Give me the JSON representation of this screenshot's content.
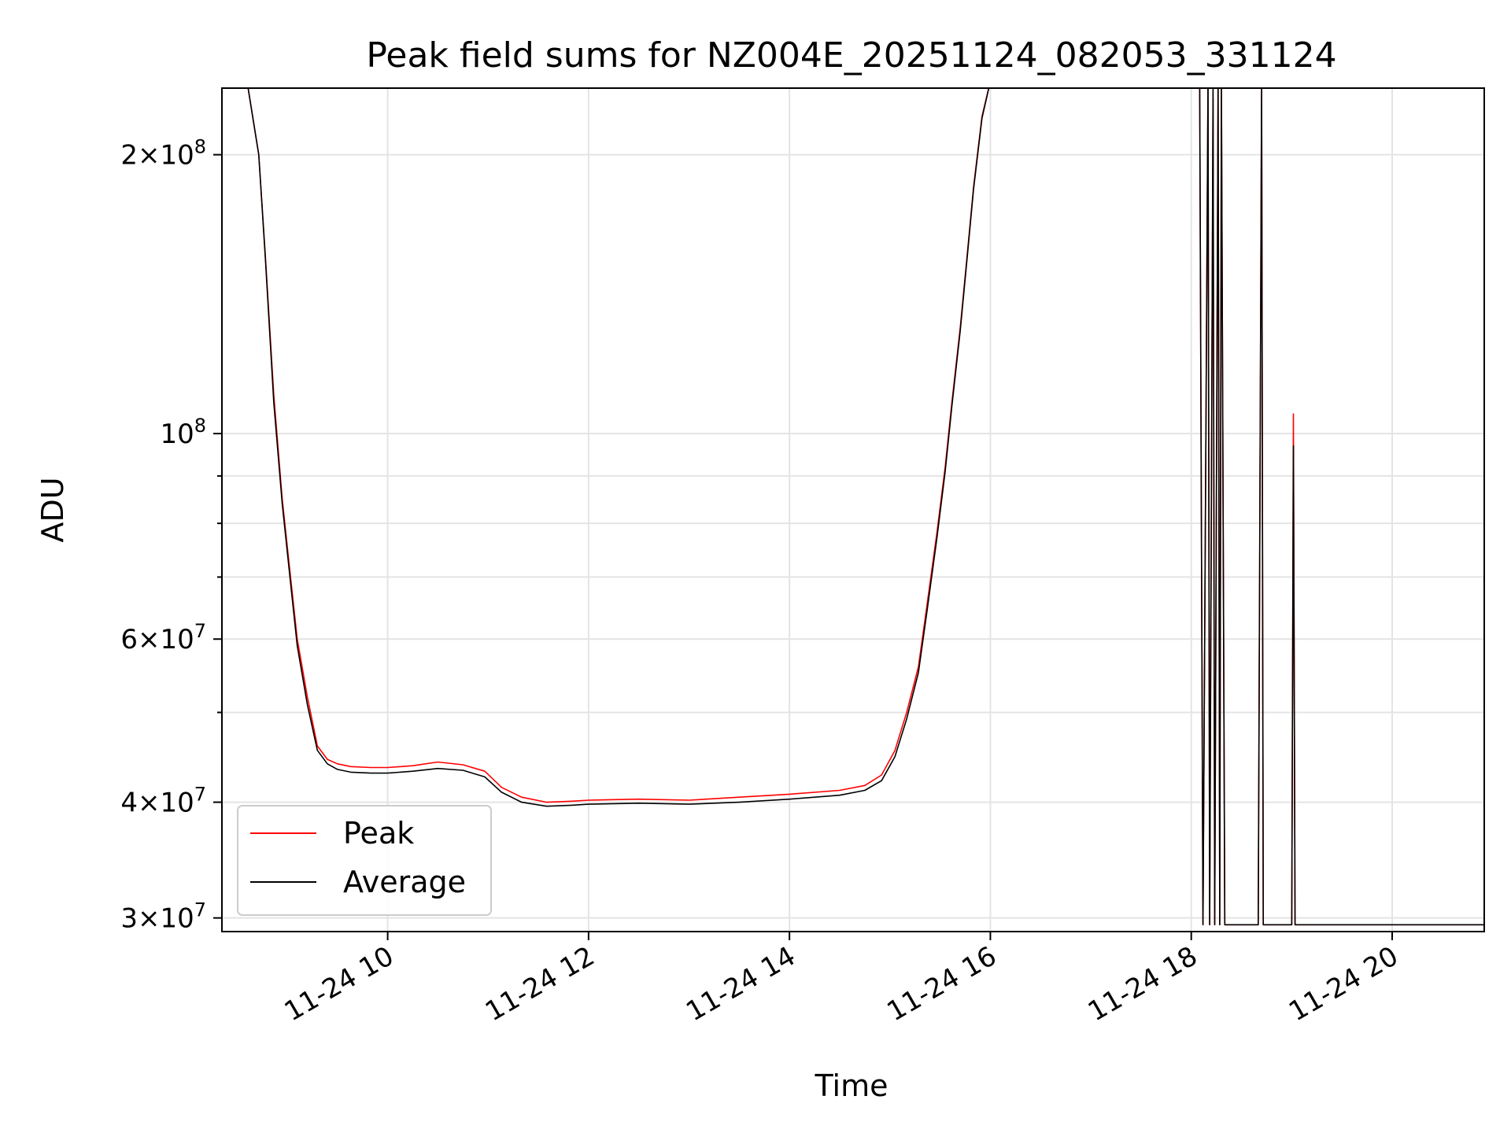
{
  "chart_data": {
    "type": "line",
    "title": "Peak field sums for NZ004E_20251124_082053_331124",
    "xlabel": "Time",
    "ylabel": "ADU",
    "yscale": "log",
    "grid": true,
    "legend_position": "lower-left",
    "xlim": [
      "2025-11-24 08:21",
      "2025-11-24 20:55"
    ],
    "ylim": [
      29000000,
      236000000
    ],
    "x_ticks": [
      {
        "value": "2025-11-24 10:00",
        "label": "11-24 10"
      },
      {
        "value": "2025-11-24 12:00",
        "label": "11-24 12"
      },
      {
        "value": "2025-11-24 14:00",
        "label": "11-24 14"
      },
      {
        "value": "2025-11-24 16:00",
        "label": "11-24 16"
      },
      {
        "value": "2025-11-24 18:00",
        "label": "11-24 18"
      },
      {
        "value": "2025-11-24 20:00",
        "label": "11-24 20"
      }
    ],
    "y_ticks": [
      {
        "value": 30000000,
        "mantissa": "3",
        "exponent": "7"
      },
      {
        "value": 40000000,
        "mantissa": "4",
        "exponent": "7"
      },
      {
        "value": 60000000,
        "mantissa": "6",
        "exponent": "7"
      },
      {
        "value": 100000000,
        "mantissa": "",
        "exponent": "8"
      },
      {
        "value": 200000000,
        "mantissa": "2",
        "exponent": "8"
      }
    ],
    "y_minor_ticks": [
      50000000,
      70000000,
      80000000,
      90000000
    ],
    "series": [
      {
        "name": "Peak",
        "color": "#ff0000",
        "x": [
          "08:21",
          "08:36",
          "08:43",
          "08:47",
          "08:52",
          "08:57",
          "09:02",
          "09:06",
          "09:12",
          "09:18",
          "09:24",
          "09:30",
          "09:38",
          "09:50",
          "10:00",
          "10:15",
          "10:30",
          "10:45",
          "10:58",
          "11:08",
          "11:20",
          "11:35",
          "11:50",
          "12:00",
          "12:30",
          "13:00",
          "13:30",
          "14:00",
          "14:30",
          "14:45",
          "14:55",
          "15:03",
          "15:10",
          "15:17",
          "15:22",
          "15:28",
          "15:33",
          "15:37",
          "15:42",
          "15:46",
          "15:50",
          "15:55",
          "16:00",
          "17:58",
          "18:05",
          "18:07",
          "18:10",
          "18:11",
          "18:13",
          "18:14",
          "18:16",
          "18:17",
          "18:18",
          "18:20",
          "18:22",
          "18:25",
          "18:40",
          "18:42",
          "18:43",
          "18:50",
          "18:55",
          "19:00",
          "19:01",
          "19:02",
          "20:55"
        ],
        "values": [
          240000000,
          240000000,
          200000000,
          155000000,
          110000000,
          85000000,
          70000000,
          60000000,
          52000000,
          46000000,
          44500000,
          44000000,
          43700000,
          43600000,
          43600000,
          43800000,
          44200000,
          43900000,
          43200000,
          41500000,
          40500000,
          40000000,
          40100000,
          40200000,
          40300000,
          40200000,
          40500000,
          40800000,
          41200000,
          41700000,
          42800000,
          45500000,
          50000000,
          56000000,
          65000000,
          78000000,
          92000000,
          108000000,
          130000000,
          155000000,
          185000000,
          220000000,
          240000000,
          240000000,
          240000000,
          29500000,
          240000000,
          29500000,
          230000000,
          29500000,
          240000000,
          29500000,
          240000000,
          29500000,
          29500000,
          29500000,
          29500000,
          240000000,
          29500000,
          29500000,
          29500000,
          29500000,
          105000000,
          29500000,
          29500000
        ]
      },
      {
        "name": "Average",
        "color": "#000000",
        "x": [
          "08:21",
          "08:36",
          "08:43",
          "08:47",
          "08:52",
          "08:57",
          "09:02",
          "09:06",
          "09:12",
          "09:18",
          "09:24",
          "09:30",
          "09:38",
          "09:50",
          "10:00",
          "10:15",
          "10:30",
          "10:45",
          "10:58",
          "11:08",
          "11:20",
          "11:35",
          "11:50",
          "12:00",
          "12:30",
          "13:00",
          "13:30",
          "14:00",
          "14:30",
          "14:45",
          "14:55",
          "15:03",
          "15:10",
          "15:17",
          "15:22",
          "15:28",
          "15:33",
          "15:37",
          "15:42",
          "15:46",
          "15:50",
          "15:55",
          "16:00",
          "17:58",
          "18:05",
          "18:07",
          "18:10",
          "18:11",
          "18:13",
          "18:14",
          "18:16",
          "18:17",
          "18:18",
          "18:20",
          "18:22",
          "18:25",
          "18:40",
          "18:42",
          "18:43",
          "18:50",
          "18:55",
          "19:00",
          "19:01",
          "19:02",
          "20:55"
        ],
        "values": [
          240000000,
          240000000,
          200000000,
          154000000,
          108000000,
          84000000,
          69000000,
          59000000,
          51000000,
          45500000,
          44000000,
          43400000,
          43100000,
          43000000,
          43000000,
          43200000,
          43500000,
          43300000,
          42600000,
          41000000,
          40000000,
          39600000,
          39700000,
          39800000,
          39900000,
          39800000,
          40000000,
          40300000,
          40700000,
          41200000,
          42200000,
          44800000,
          49200000,
          55200000,
          64000000,
          77000000,
          91000000,
          107000000,
          129000000,
          154000000,
          184000000,
          219000000,
          240000000,
          240000000,
          240000000,
          29500000,
          240000000,
          29500000,
          240000000,
          29500000,
          240000000,
          29500000,
          240000000,
          29500000,
          29500000,
          29500000,
          29500000,
          240000000,
          29500000,
          29500000,
          29500000,
          29500000,
          97000000,
          29500000,
          29500000
        ]
      }
    ]
  }
}
